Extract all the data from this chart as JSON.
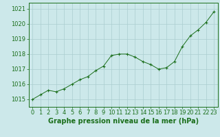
{
  "x": [
    0,
    1,
    2,
    3,
    4,
    5,
    6,
    7,
    8,
    9,
    10,
    11,
    12,
    13,
    14,
    15,
    16,
    17,
    18,
    19,
    20,
    21,
    22,
    23
  ],
  "y": [
    1015.0,
    1015.3,
    1015.6,
    1015.5,
    1015.7,
    1016.0,
    1016.3,
    1016.5,
    1016.9,
    1017.2,
    1017.9,
    1018.0,
    1018.0,
    1017.8,
    1017.5,
    1017.3,
    1017.0,
    1017.1,
    1017.5,
    1018.5,
    1019.2,
    1019.6,
    1020.1,
    1020.8
  ],
  "line_color": "#1a6e1a",
  "marker": "+",
  "marker_size": 3,
  "marker_lw": 0.8,
  "bg_color": "#cce8ea",
  "grid_color": "#aacdd0",
  "ylabel_ticks": [
    1015,
    1016,
    1017,
    1018,
    1019,
    1020,
    1021
  ],
  "xlabel": "Graphe pression niveau de la mer (hPa)",
  "xlabel_fontsize": 7,
  "tick_fontsize": 6,
  "ylim": [
    1014.5,
    1021.4
  ],
  "xlim": [
    -0.5,
    23.5
  ],
  "axis_color": "#1a6e1a",
  "line_width": 0.7
}
